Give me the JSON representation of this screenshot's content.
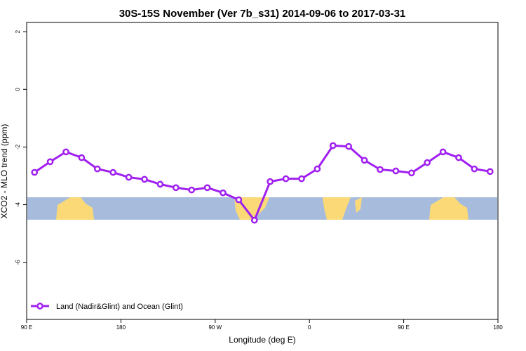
{
  "chart_data": {
    "type": "line",
    "title": "30S-15S November (Ver 7b_s31)   2014-09-06 to 2017-03-31",
    "x_label": "Longitude (deg E)",
    "y_label": "XCO2 - MLO trend (ppm)",
    "x": [
      97.5,
      112.5,
      127.5,
      142.5,
      157.5,
      172.5,
      187.5,
      202.5,
      217.5,
      232.5,
      247.5,
      262.5,
      277.5,
      292.5,
      307.5,
      322.5,
      337.5,
      352.5,
      367.5,
      382.5,
      397.5,
      412.5,
      427.5,
      442.5,
      457.5,
      472.5,
      487.5,
      502.5,
      517.5,
      532.5
    ],
    "series": [
      {
        "name": "Land (Nadir&Glint) and Ocean (Glint)",
        "color": "#a020f0",
        "values": [
          -2.88,
          -2.51,
          -2.17,
          -2.37,
          -2.76,
          -2.88,
          -3.05,
          -3.12,
          -3.29,
          -3.41,
          -3.49,
          -3.41,
          -3.59,
          -3.83,
          -4.54,
          -3.2,
          -3.1,
          -3.1,
          -2.76,
          -1.95,
          -1.98,
          -2.46,
          -2.78,
          -2.83,
          -2.9,
          -2.54,
          -2.17,
          -2.37,
          -2.76,
          -2.85
        ]
      }
    ],
    "xlim": [
      90,
      540
    ],
    "xticks": [
      {
        "value": 90,
        "label": "90 E"
      },
      180,
      {
        "value": 270,
        "label": "90 W"
      },
      {
        "value": 360,
        "label": "0"
      },
      {
        "value": 450,
        "label": "90 E"
      },
      {
        "value": 540,
        "label": "180"
      }
    ],
    "ylim": [
      -7.98,
      2.32
    ],
    "yticks": [
      2,
      0,
      -2,
      -4,
      -6
    ],
    "legend": "bottom-left"
  }
}
